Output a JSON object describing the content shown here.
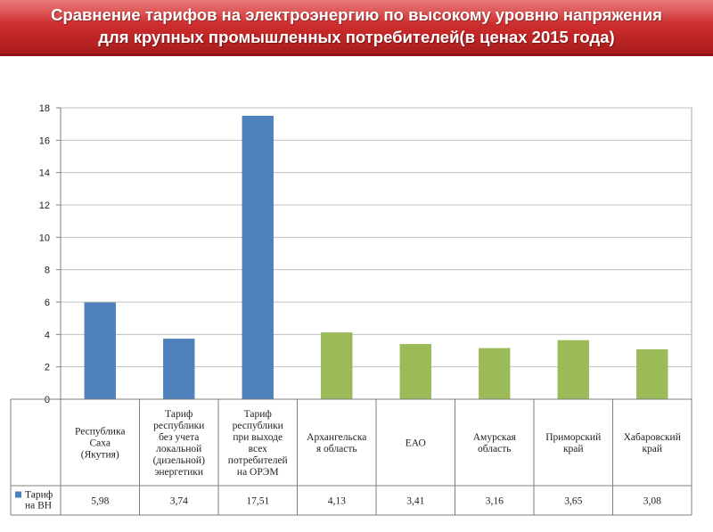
{
  "header": {
    "title_line1": "Сравнение тарифов на электроэнергию по высокому уровню напряжения",
    "title_line2": "для крупных промышленных потребителей(в ценах 2015 года)"
  },
  "colors": {
    "banner": "#c92a2a",
    "series_blue": "#4f81bd",
    "series_green": "#9bbb59"
  },
  "chart_data": {
    "type": "bar",
    "title": "",
    "xlabel": "",
    "ylabel": "",
    "ylim": [
      0,
      18
    ],
    "yticks": [
      "0",
      "2",
      "4",
      "6",
      "8",
      "10",
      "12",
      "14",
      "16",
      "18"
    ],
    "grid": true,
    "legend_position": "left of data table",
    "categories": [
      [
        "Республика",
        "Саха",
        "(Якутия)"
      ],
      [
        "Тариф",
        "республики",
        "без учета",
        "локальной",
        "(дизельной)",
        "энергетики"
      ],
      [
        "Тариф",
        "республики",
        "при выходе",
        "всех",
        "потребителей",
        "на ОРЭМ"
      ],
      [
        "Архангельска",
        "я область"
      ],
      [
        "ЕАО"
      ],
      [
        "Амурская",
        "область"
      ],
      [
        "Приморский",
        "край"
      ],
      [
        "Хабаровский",
        "край"
      ]
    ],
    "series": [
      {
        "name": [
          "Тариф",
          "на ВН"
        ],
        "values": [
          5.98,
          3.74,
          17.51,
          4.13,
          3.41,
          3.16,
          3.65,
          3.08
        ],
        "value_labels": [
          "5,98",
          "3,74",
          "17,51",
          "4,13",
          "3,41",
          "3,16",
          "3,65",
          "3,08"
        ],
        "bar_colors": [
          "#4f81bd",
          "#4f81bd",
          "#4f81bd",
          "#9bbb59",
          "#9bbb59",
          "#9bbb59",
          "#9bbb59",
          "#9bbb59"
        ]
      }
    ]
  }
}
